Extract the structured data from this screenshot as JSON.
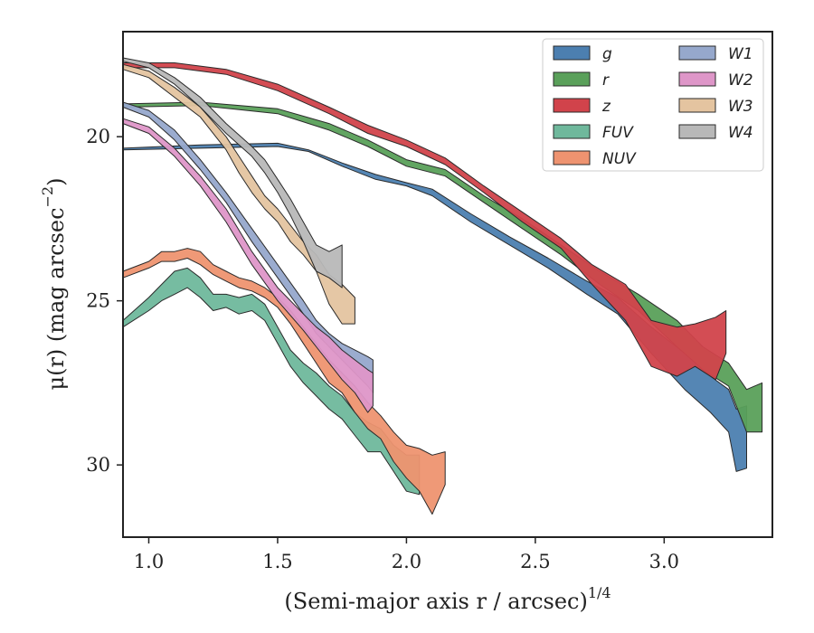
{
  "chart_data": {
    "type": "area",
    "xlabel": "(Semi-major axis r / arcsec)",
    "xlabel_superscript": "1/4",
    "ylabel": "μ(r) (mag arcsec",
    "ylabel_superscript": "−2",
    "ylabel_close": ")",
    "xlim": [
      0.9,
      3.42
    ],
    "ylim": [
      32.2,
      16.8
    ],
    "y_inverted": true,
    "xticks": [
      "1.0",
      "1.5",
      "2.0",
      "2.5",
      "3.0"
    ],
    "xtick_values": [
      1.0,
      1.5,
      2.0,
      2.5,
      3.0
    ],
    "yticks": [
      "20",
      "25",
      "30"
    ],
    "ytick_values": [
      20,
      25,
      30
    ],
    "grid": false,
    "legend_position": "top-right",
    "legend_columns": 2,
    "series": [
      {
        "name": "g",
        "color": "#4c7fb0",
        "points": [
          [
            0.9,
            20.4,
            20.35
          ],
          [
            1.2,
            20.35,
            20.25
          ],
          [
            1.5,
            20.3,
            20.2
          ],
          [
            1.62,
            20.45,
            20.4
          ],
          [
            1.75,
            20.9,
            20.8
          ],
          [
            1.88,
            21.3,
            21.15
          ],
          [
            2.0,
            21.5,
            21.4
          ],
          [
            2.1,
            21.8,
            21.6
          ],
          [
            2.25,
            22.6,
            22.35
          ],
          [
            2.4,
            23.3,
            23.05
          ],
          [
            2.55,
            24.0,
            23.7
          ],
          [
            2.7,
            24.8,
            24.4
          ],
          [
            2.82,
            25.4,
            24.9
          ],
          [
            2.95,
            26.6,
            25.8
          ],
          [
            3.08,
            27.7,
            26.6
          ],
          [
            3.18,
            28.4,
            27.3
          ],
          [
            3.25,
            29.0,
            27.7
          ],
          [
            3.28,
            30.2,
            28.3
          ],
          [
            3.32,
            30.1,
            28.2
          ]
        ]
      },
      {
        "name": "r",
        "color": "#5aa05a",
        "points": [
          [
            0.9,
            19.1,
            19.0
          ],
          [
            1.2,
            19.05,
            18.95
          ],
          [
            1.5,
            19.3,
            19.15
          ],
          [
            1.7,
            19.8,
            19.6
          ],
          [
            1.85,
            20.3,
            20.1
          ],
          [
            2.0,
            20.9,
            20.7
          ],
          [
            2.15,
            21.2,
            21.0
          ],
          [
            2.3,
            22.0,
            21.8
          ],
          [
            2.45,
            22.8,
            22.5
          ],
          [
            2.6,
            23.6,
            23.3
          ],
          [
            2.75,
            24.5,
            24.1
          ],
          [
            2.9,
            25.3,
            24.8
          ],
          [
            3.05,
            26.4,
            25.6
          ],
          [
            3.15,
            27.1,
            26.4
          ],
          [
            3.25,
            27.6,
            26.9
          ],
          [
            3.32,
            29.0,
            27.7
          ],
          [
            3.38,
            29.0,
            27.5
          ]
        ]
      },
      {
        "name": "z",
        "color": "#d1434b",
        "points": [
          [
            0.9,
            17.9,
            17.75
          ],
          [
            1.1,
            17.9,
            17.75
          ],
          [
            1.3,
            18.1,
            17.95
          ],
          [
            1.5,
            18.6,
            18.4
          ],
          [
            1.7,
            19.3,
            19.1
          ],
          [
            1.85,
            19.9,
            19.65
          ],
          [
            2.0,
            20.3,
            20.1
          ],
          [
            2.15,
            20.85,
            20.65
          ],
          [
            2.3,
            21.7,
            21.5
          ],
          [
            2.45,
            22.6,
            22.3
          ],
          [
            2.6,
            23.4,
            23.1
          ],
          [
            2.72,
            24.5,
            23.9
          ],
          [
            2.85,
            25.6,
            24.5
          ],
          [
            2.95,
            27.0,
            25.6
          ],
          [
            3.05,
            27.3,
            25.8
          ],
          [
            3.12,
            27.0,
            25.7
          ],
          [
            3.2,
            27.4,
            25.5
          ],
          [
            3.24,
            26.6,
            25.3
          ]
        ]
      },
      {
        "name": "FUV",
        "color": "#6fb89c",
        "points": [
          [
            0.9,
            25.8,
            25.6
          ],
          [
            1.0,
            25.3,
            24.9
          ],
          [
            1.05,
            25.0,
            24.5
          ],
          [
            1.1,
            24.8,
            24.1
          ],
          [
            1.15,
            24.6,
            24.0
          ],
          [
            1.2,
            24.9,
            24.3
          ],
          [
            1.25,
            25.3,
            24.8
          ],
          [
            1.3,
            25.2,
            24.8
          ],
          [
            1.35,
            25.4,
            24.9
          ],
          [
            1.4,
            25.3,
            24.8
          ],
          [
            1.45,
            25.6,
            25.1
          ],
          [
            1.5,
            26.3,
            25.8
          ],
          [
            1.55,
            27.0,
            26.5
          ],
          [
            1.6,
            27.5,
            26.9
          ],
          [
            1.65,
            27.9,
            27.2
          ],
          [
            1.7,
            28.3,
            27.6
          ],
          [
            1.75,
            28.6,
            27.9
          ],
          [
            1.8,
            29.1,
            28.4
          ],
          [
            1.85,
            29.6,
            28.7
          ],
          [
            1.9,
            29.6,
            28.9
          ],
          [
            1.95,
            30.2,
            29.4
          ],
          [
            2.0,
            30.8,
            29.7
          ],
          [
            2.05,
            30.9,
            29.7
          ]
        ]
      },
      {
        "name": "NUV",
        "color": "#ee9370",
        "points": [
          [
            0.9,
            24.3,
            24.1
          ],
          [
            1.0,
            24.0,
            23.8
          ],
          [
            1.05,
            23.8,
            23.5
          ],
          [
            1.1,
            23.8,
            23.5
          ],
          [
            1.15,
            23.7,
            23.4
          ],
          [
            1.2,
            23.9,
            23.5
          ],
          [
            1.25,
            24.2,
            23.9
          ],
          [
            1.3,
            24.4,
            24.1
          ],
          [
            1.35,
            24.6,
            24.3
          ],
          [
            1.4,
            24.7,
            24.4
          ],
          [
            1.45,
            24.9,
            24.6
          ],
          [
            1.5,
            25.2,
            24.9
          ],
          [
            1.55,
            25.7,
            25.3
          ],
          [
            1.6,
            26.3,
            25.8
          ],
          [
            1.65,
            26.9,
            26.3
          ],
          [
            1.7,
            27.5,
            26.8
          ],
          [
            1.75,
            27.8,
            27.2
          ],
          [
            1.8,
            28.4,
            27.6
          ],
          [
            1.85,
            28.9,
            28.1
          ],
          [
            1.9,
            29.2,
            28.5
          ],
          [
            1.95,
            29.9,
            29.0
          ],
          [
            2.0,
            30.4,
            29.4
          ],
          [
            2.05,
            30.8,
            29.5
          ],
          [
            2.1,
            31.5,
            29.7
          ],
          [
            2.15,
            30.6,
            29.6
          ]
        ]
      },
      {
        "name": "W1",
        "color": "#96a8cc",
        "points": [
          [
            0.9,
            19.1,
            18.95
          ],
          [
            1.0,
            19.4,
            19.2
          ],
          [
            1.1,
            20.1,
            19.8
          ],
          [
            1.2,
            21.0,
            20.7
          ],
          [
            1.3,
            22.0,
            21.7
          ],
          [
            1.4,
            23.2,
            22.8
          ],
          [
            1.5,
            24.3,
            23.9
          ],
          [
            1.6,
            25.4,
            25.0
          ],
          [
            1.65,
            26.0,
            25.6
          ],
          [
            1.7,
            26.4,
            26.0
          ],
          [
            1.75,
            26.8,
            26.3
          ],
          [
            1.8,
            27.2,
            26.5
          ],
          [
            1.85,
            27.6,
            26.7
          ],
          [
            1.87,
            27.8,
            26.8
          ]
        ]
      },
      {
        "name": "W2",
        "color": "#de96c8",
        "points": [
          [
            0.9,
            19.6,
            19.45
          ],
          [
            1.0,
            19.9,
            19.7
          ],
          [
            1.1,
            20.6,
            20.35
          ],
          [
            1.2,
            21.5,
            21.2
          ],
          [
            1.3,
            22.6,
            22.2
          ],
          [
            1.4,
            23.9,
            23.5
          ],
          [
            1.5,
            25.0,
            24.6
          ],
          [
            1.6,
            25.9,
            25.4
          ],
          [
            1.65,
            26.4,
            25.8
          ],
          [
            1.7,
            26.9,
            26.1
          ],
          [
            1.75,
            27.4,
            26.5
          ],
          [
            1.8,
            27.8,
            26.8
          ],
          [
            1.85,
            28.4,
            27.1
          ],
          [
            1.87,
            28.2,
            27.2
          ]
        ]
      },
      {
        "name": "W3",
        "color": "#e4c4a0",
        "points": [
          [
            0.9,
            17.95,
            17.8
          ],
          [
            1.0,
            18.2,
            18.0
          ],
          [
            1.1,
            18.8,
            18.5
          ],
          [
            1.2,
            19.4,
            19.1
          ],
          [
            1.3,
            20.4,
            20.0
          ],
          [
            1.35,
            21.1,
            20.6
          ],
          [
            1.4,
            21.7,
            21.2
          ],
          [
            1.45,
            22.2,
            21.8
          ],
          [
            1.5,
            22.6,
            22.2
          ],
          [
            1.55,
            23.2,
            22.7
          ],
          [
            1.6,
            23.6,
            23.2
          ],
          [
            1.65,
            24.1,
            23.6
          ],
          [
            1.7,
            25.1,
            24.2
          ],
          [
            1.75,
            25.7,
            24.5
          ],
          [
            1.8,
            25.7,
            24.9
          ]
        ]
      },
      {
        "name": "W4",
        "color": "#b8b8b8",
        "points": [
          [
            0.9,
            17.7,
            17.6
          ],
          [
            1.0,
            17.9,
            17.75
          ],
          [
            1.1,
            18.4,
            18.2
          ],
          [
            1.2,
            19.1,
            18.8
          ],
          [
            1.3,
            19.9,
            19.6
          ],
          [
            1.4,
            20.6,
            20.3
          ],
          [
            1.45,
            21.1,
            20.7
          ],
          [
            1.5,
            21.7,
            21.3
          ],
          [
            1.55,
            22.4,
            21.9
          ],
          [
            1.6,
            23.2,
            22.6
          ],
          [
            1.65,
            24.1,
            23.3
          ],
          [
            1.7,
            24.3,
            23.5
          ],
          [
            1.75,
            24.6,
            23.3
          ]
        ]
      }
    ]
  }
}
